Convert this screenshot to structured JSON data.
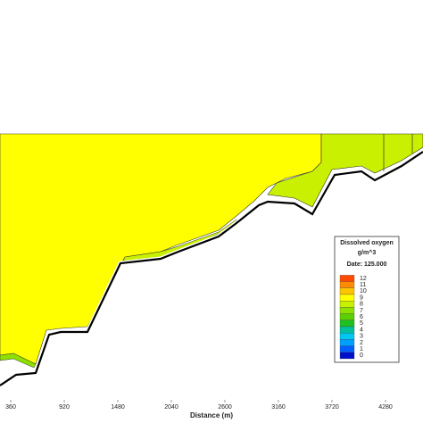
{
  "chart_data": {
    "type": "contour",
    "x_label": "Distance (m)",
    "xlim": [
      248,
      4672
    ],
    "xticks": [
      360,
      920,
      1480,
      2040,
      2600,
      3160,
      3720,
      4280
    ],
    "legend": {
      "title": "Dissolved oxygen",
      "unit": "g/m^3",
      "date": "Date: 125.000",
      "levels": [
        12,
        11,
        10,
        9,
        8,
        7,
        6,
        5,
        4,
        3,
        2,
        1,
        0
      ],
      "colors": [
        "#ff4a00",
        "#ff8c00",
        "#ffc400",
        "#ffff00",
        "#c8f000",
        "#8ee000",
        "#5ad000",
        "#20c020",
        "#00c0a0",
        "#00c8f0",
        "#00a0ff",
        "#0060ff",
        "#0010c8"
      ]
    }
  }
}
